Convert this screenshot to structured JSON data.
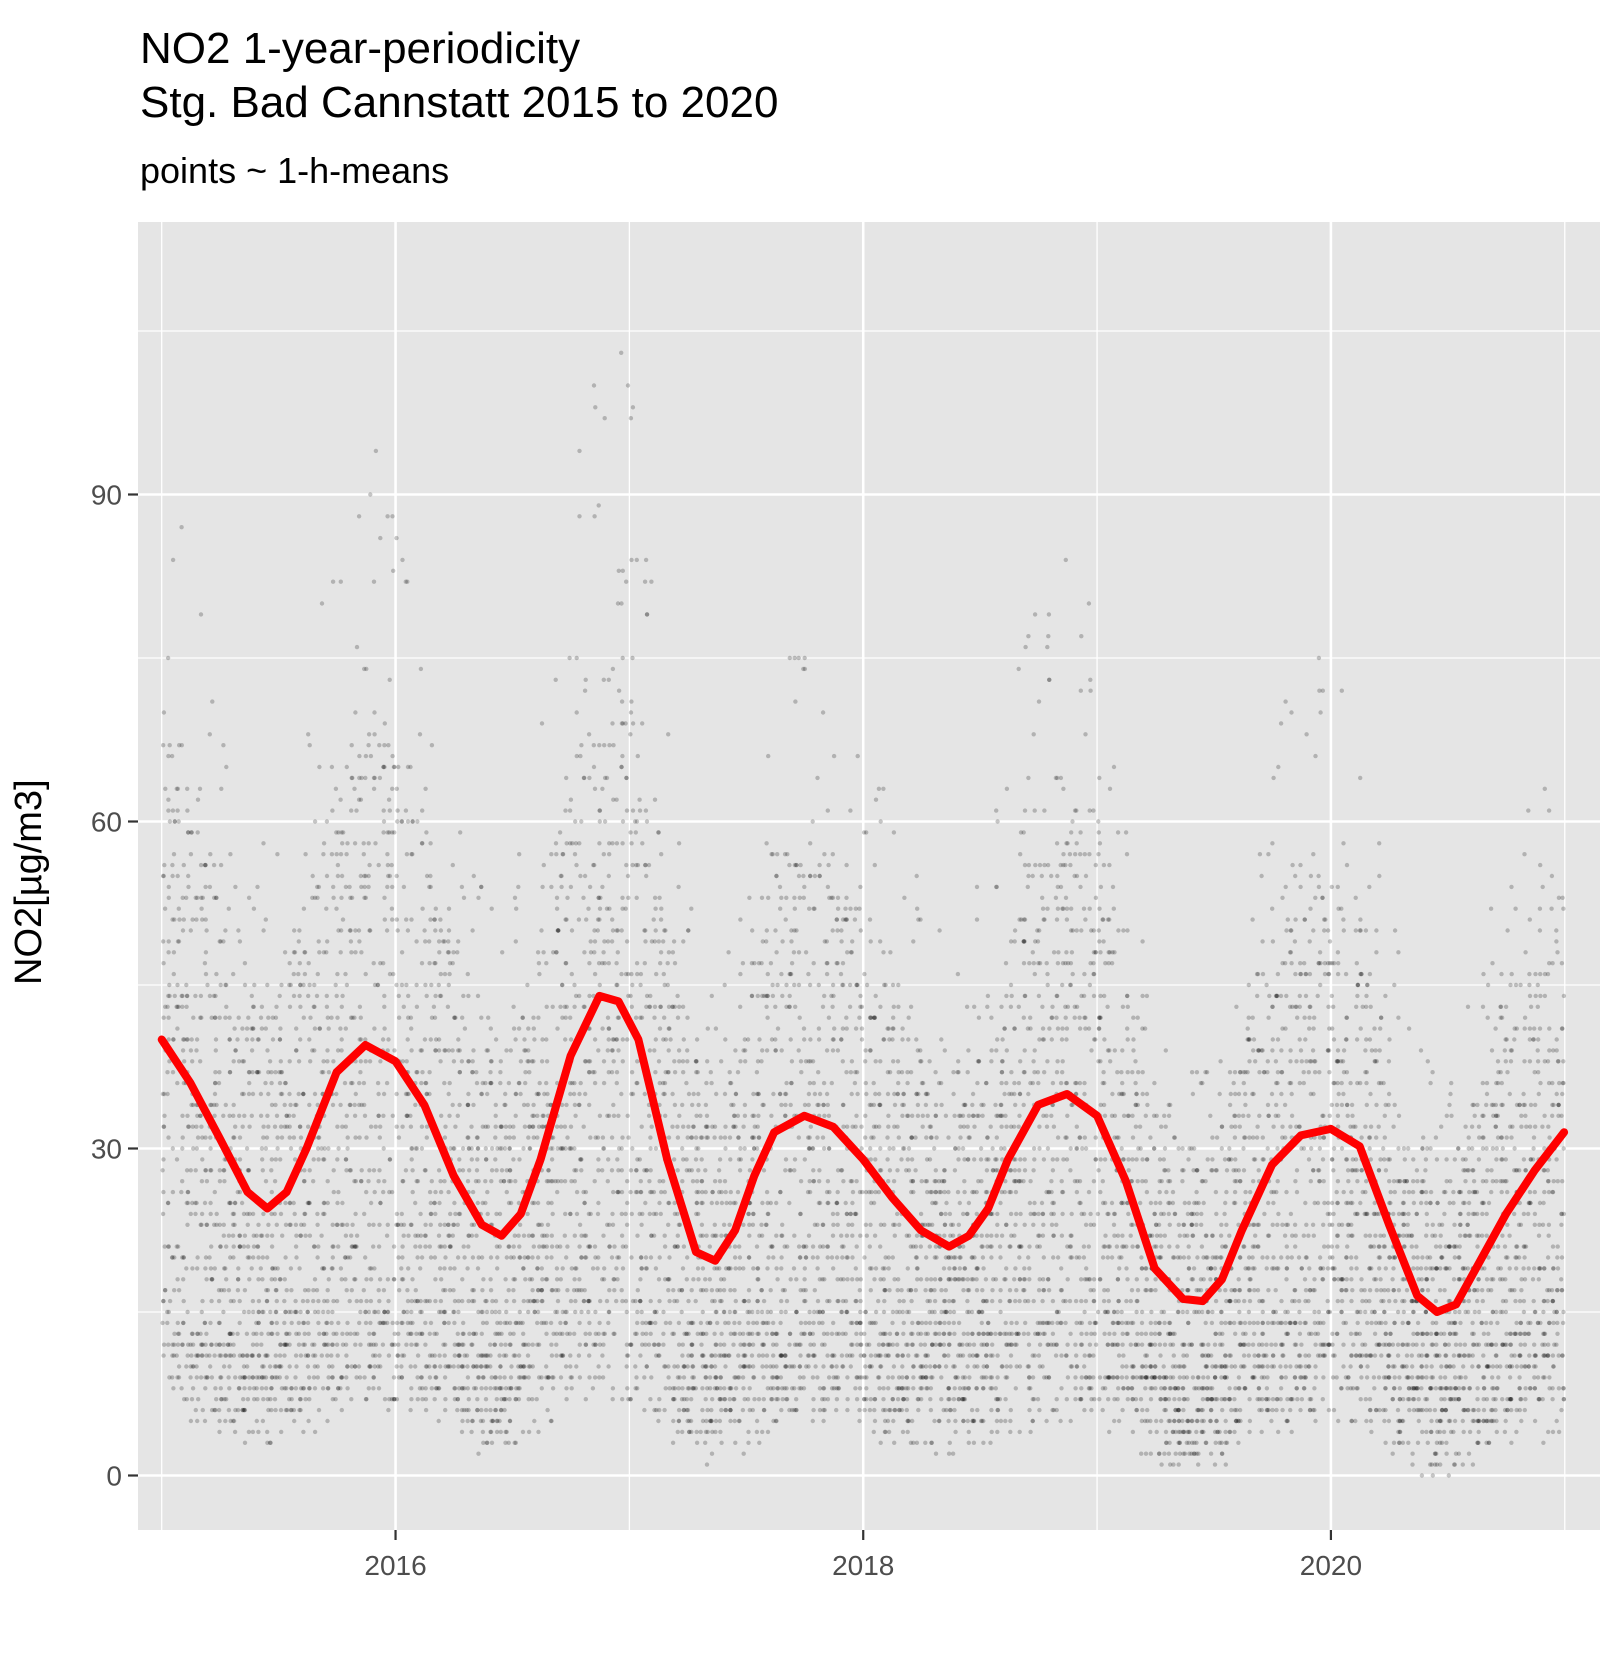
{
  "chart_data": {
    "type": "scatter",
    "title_lines": [
      "NO2 1-year-periodicity",
      "Stg. Bad Cannstatt 2015 to 2020"
    ],
    "subtitle": "points ~ 1-h-means",
    "ylabel": "NO2[µg/m3]",
    "xlabel": "",
    "xlim": [
      "2014-11-25",
      "2021-02-25"
    ],
    "ylim": [
      -5,
      115
    ],
    "x_ticks": [
      "2016",
      "2018",
      "2020"
    ],
    "y_ticks": [
      0,
      30,
      60,
      90
    ],
    "grid": true,
    "points_color": "#000000",
    "smooth_color": "#ff0000",
    "background_color": "#e5e5e5",
    "series": [
      {
        "type": "line",
        "x": [
          "2015-01-01",
          "2015-02-15",
          "2015-04-01",
          "2015-05-15",
          "2015-06-15",
          "2015-07-15",
          "2015-08-15",
          "2015-10-01",
          "2015-11-15",
          "2016-01-01",
          "2016-02-15",
          "2016-04-01",
          "2016-05-15",
          "2016-06-15",
          "2016-07-15",
          "2016-08-15",
          "2016-10-01",
          "2016-11-15",
          "2016-12-15",
          "2017-01-15",
          "2017-03-01",
          "2017-04-15",
          "2017-05-15",
          "2017-06-15",
          "2017-07-15",
          "2017-08-15",
          "2017-10-01",
          "2017-11-15",
          "2018-01-01",
          "2018-02-15",
          "2018-04-01",
          "2018-05-15",
          "2018-06-15",
          "2018-07-15",
          "2018-08-15",
          "2018-10-01",
          "2018-11-15",
          "2019-01-01",
          "2019-02-15",
          "2019-04-01",
          "2019-05-15",
          "2019-06-15",
          "2019-07-15",
          "2019-08-15",
          "2019-10-01",
          "2019-11-15",
          "2020-01-01",
          "2020-02-15",
          "2020-04-01",
          "2020-05-15",
          "2020-06-15",
          "2020-07-15",
          "2020-08-15",
          "2020-10-01",
          "2020-11-15",
          "2020-12-31"
        ],
        "y": [
          40,
          36,
          31,
          26,
          24.5,
          26,
          30,
          37,
          39.5,
          38,
          34,
          27.5,
          23,
          22,
          24,
          29,
          38.5,
          44,
          43.5,
          40,
          29,
          20.5,
          19.7,
          22.5,
          27.5,
          31.5,
          33,
          32,
          29,
          25.5,
          22.5,
          21,
          22,
          24.5,
          29,
          34,
          35,
          33,
          27,
          19,
          16.2,
          16,
          18,
          22.5,
          28.5,
          31.2,
          31.8,
          30.2,
          23,
          16.5,
          15,
          15.7,
          19,
          24,
          28,
          31.5
        ]
      }
    ],
    "scatter_note_type": "dense hourly means, clustered by season"
  }
}
